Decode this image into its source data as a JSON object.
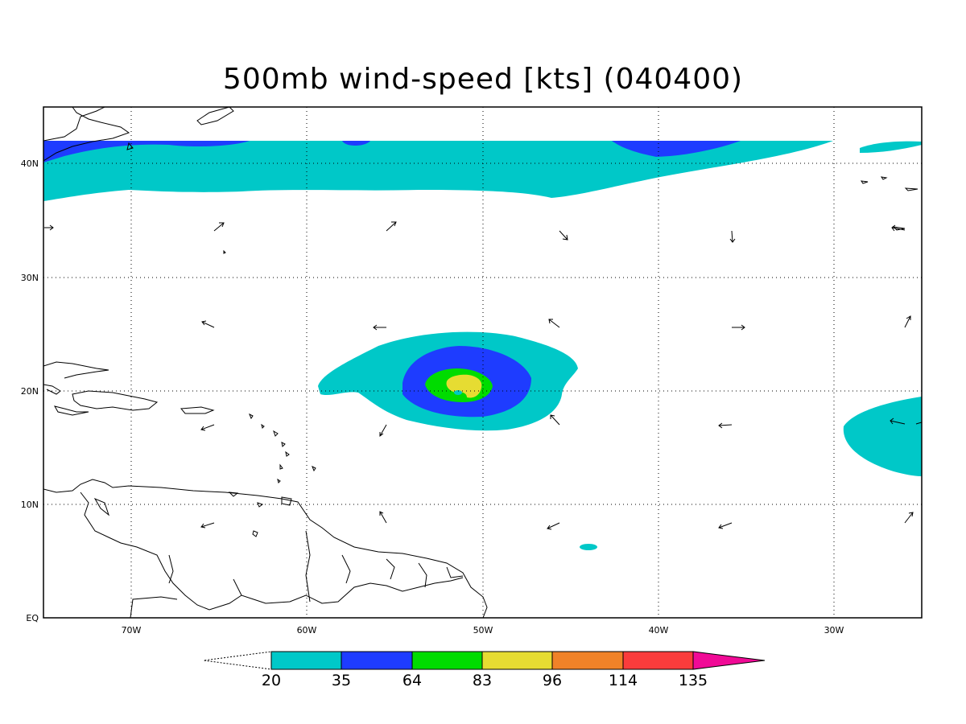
{
  "title": "500mb wind-speed [kts] (040400)",
  "map": {
    "lon_range": [
      -75,
      -25
    ],
    "lat_range": [
      0,
      45
    ],
    "lon_ticks": [
      {
        "value": -70,
        "label": "70W"
      },
      {
        "value": -60,
        "label": "60W"
      },
      {
        "value": -50,
        "label": "50W"
      },
      {
        "value": -40,
        "label": "40W"
      },
      {
        "value": -30,
        "label": "30W"
      }
    ],
    "lat_ticks": [
      {
        "value": 0,
        "label": "EQ"
      },
      {
        "value": 10,
        "label": "10N"
      },
      {
        "value": 20,
        "label": "20N"
      },
      {
        "value": 30,
        "label": "30N"
      },
      {
        "value": 40,
        "label": "40N"
      }
    ],
    "grid": "dotted",
    "wind_vectors": true
  },
  "colorbar": {
    "levels": [
      "20",
      "35",
      "64",
      "83",
      "96",
      "114",
      "135"
    ],
    "colors": [
      "#00c8c8",
      "#1e3cff",
      "#00dc00",
      "#e6dc32",
      "#f08228",
      "#fa3c3c",
      "#f00a96"
    ],
    "extend": "both"
  }
}
